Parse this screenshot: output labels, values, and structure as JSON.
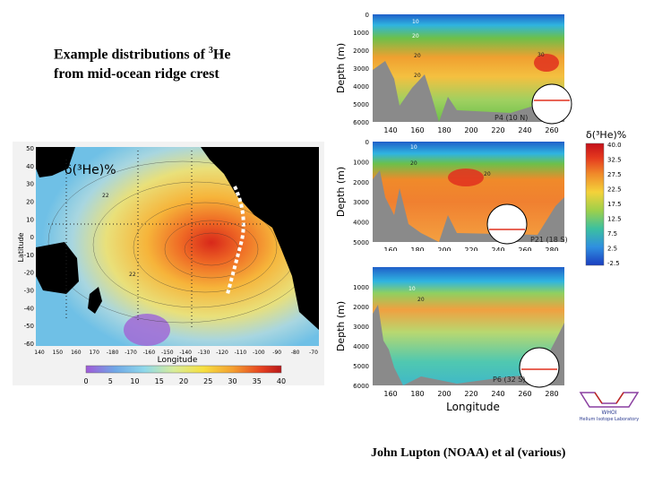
{
  "title": {
    "line1_pre": "Example distributions of ",
    "line1_sup": "3",
    "line1_post": "He",
    "line2": "from mid-ocean ridge crest"
  },
  "credit": "John Lupton (NOAA) et al (various)",
  "map": {
    "label": "δ(³He)%",
    "xlabel": "Longitude",
    "ylabel": "Latitude",
    "x_ticks": [
      "140",
      "150",
      "160",
      "170",
      "-180",
      "-170",
      "-160",
      "-150",
      "-140",
      "-130",
      "-120",
      "-110",
      "-100",
      "-90",
      "-80",
      "-70"
    ],
    "y_ticks": [
      "50",
      "40",
      "30",
      "20",
      "10",
      "0",
      "-10",
      "-20",
      "-30",
      "-40",
      "-50",
      "-60"
    ],
    "contour_labels": [
      "22",
      "22"
    ],
    "colorbar_ticks": [
      "0",
      "5",
      "10",
      "15",
      "20",
      "25",
      "30",
      "35",
      "40"
    ]
  },
  "sections": [
    {
      "name": "P4 (10 N)",
      "ylabel": "Depth (m)",
      "y_ticks": [
        "0",
        "1000",
        "2000",
        "3000",
        "4000",
        "5000",
        "6000"
      ],
      "x_ticks": [
        "140",
        "160",
        "180",
        "200",
        "220",
        "240",
        "260"
      ],
      "contour_labels": [
        "10",
        "20",
        "20",
        "30",
        "20"
      ]
    },
    {
      "name": "P21 (18 S)",
      "ylabel": "Depth (m)",
      "y_ticks": [
        "0",
        "1000",
        "2000",
        "3000",
        "4000",
        "5000"
      ],
      "x_ticks": [
        "160",
        "180",
        "200",
        "220",
        "240",
        "260",
        "280"
      ],
      "contour_labels": [
        "10",
        "20",
        "20"
      ]
    },
    {
      "name": "P6 (32 S)",
      "ylabel": "Depth (m)",
      "y_ticks": [
        "1000",
        "2000",
        "3000",
        "4000",
        "5000",
        "6000"
      ],
      "x_ticks": [
        "160",
        "180",
        "200",
        "220",
        "240",
        "260",
        "280"
      ],
      "xlabel": "Longitude",
      "contour_labels": [
        "10",
        "20"
      ]
    }
  ],
  "colorbar": {
    "label": "δ(³He)%",
    "ticks": [
      "40.0",
      "32.5",
      "27.5",
      "22.5",
      "17.5",
      "12.5",
      "7.5",
      "2.5",
      "-2.5"
    ]
  },
  "logo": {
    "line1": "WHOI",
    "line2": "Helium Isotope Laboratory"
  },
  "colors": {
    "hot": "#e0301e",
    "orange": "#f08a2a",
    "yellow": "#f4d23a",
    "green": "#6cc04a",
    "blue": "#1f5fc9",
    "land": "#000000",
    "bottom": "#8a8a8a"
  }
}
